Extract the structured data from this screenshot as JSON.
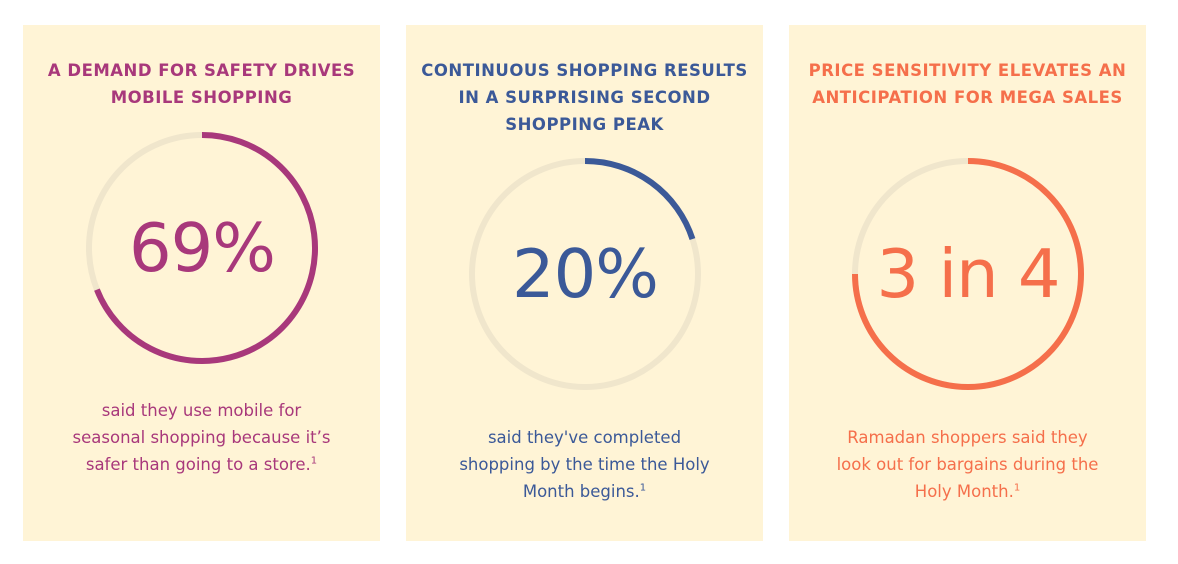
{
  "cards": [
    {
      "title": "A DEMAND FOR SAFETY DRIVES MOBILE SHOPPING",
      "stat": "69%",
      "progress": 0.69,
      "description": "said they use mobile for seasonal shopping because it’s safer than going to a store.",
      "footnote": "1",
      "color": "#a8387b"
    },
    {
      "title": "CONTINUOUS SHOPPING RESULTS IN A SURPRISING SECOND SHOPPING PEAK",
      "stat": "20%",
      "progress": 0.2,
      "description": "said they've completed shopping by the time the Holy Month begins.",
      "footnote": "1",
      "color": "#3b5998"
    },
    {
      "title": "PRICE SENSITIVITY ELEVATES AN ANTICIPATION FOR MEGA SALES",
      "stat": "3 in 4",
      "progress": 0.75,
      "description": "Ramadan shoppers said they look out for bargains during the Holy Month.",
      "footnote": "1",
      "color": "#f56f4b"
    }
  ],
  "colors": {
    "background": "#ffffff",
    "card_background": "#fff4d6",
    "ring_track": "#f0e6cc"
  }
}
